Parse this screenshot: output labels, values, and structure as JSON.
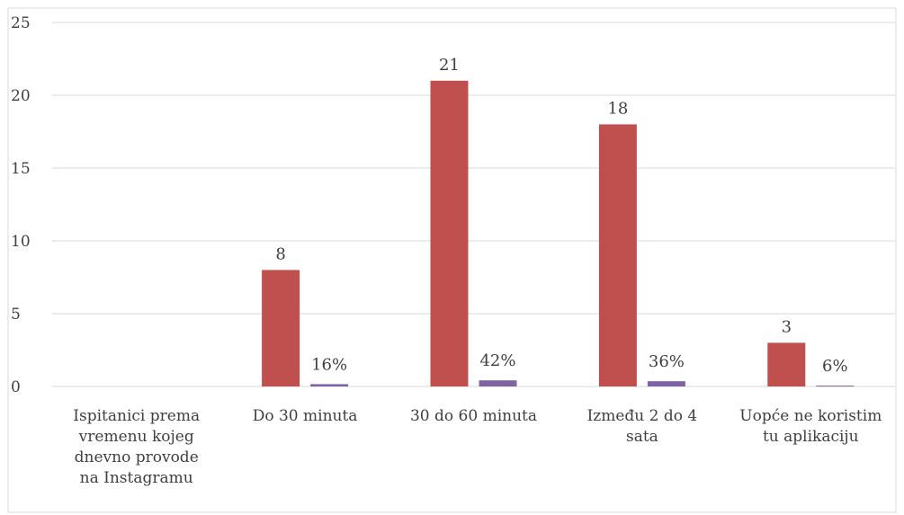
{
  "chart_data": {
    "type": "bar",
    "categories": [
      [
        "Ispitanici prema",
        "vremenu kojeg",
        "dnevno provode",
        "na Instagramu"
      ],
      [
        "Do 30 minuta"
      ],
      [
        "30 do 60 minuta"
      ],
      [
        "Između 2 do 4",
        "sata"
      ],
      [
        "Uopće ne koristim",
        "tu aplikaciju"
      ]
    ],
    "series": [
      {
        "values": [
          null,
          8,
          21,
          18,
          3
        ],
        "labels": [
          "",
          "8",
          "21",
          "18",
          "3"
        ],
        "color": "#c0504d"
      },
      {
        "values": [
          null,
          0.16,
          0.42,
          0.36,
          0.06
        ],
        "labels": [
          "",
          "16%",
          "42%",
          "36%",
          "6%"
        ],
        "color": "#8064a2"
      }
    ],
    "ylim": [
      0,
      25
    ],
    "yticks": [
      "0",
      "5",
      "10",
      "15",
      "20",
      "25"
    ],
    "grid": true,
    "title": "",
    "xlabel": "",
    "ylabel": ""
  }
}
